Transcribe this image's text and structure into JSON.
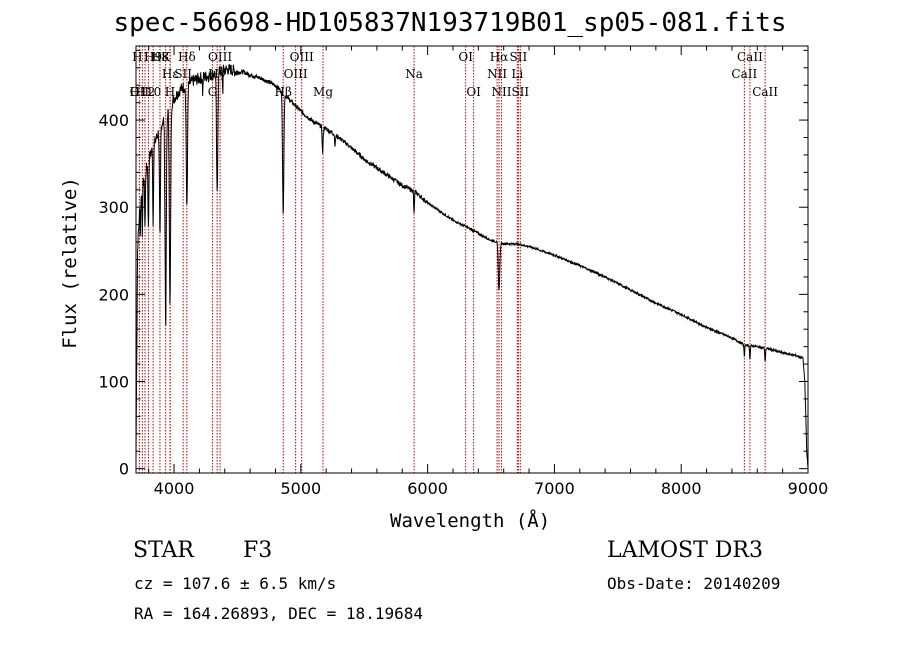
{
  "chart_data": {
    "type": "line",
    "title": "spec-56698-HD105837N193719B01_sp05-081.fits",
    "xlabel": "Wavelength (Å)",
    "ylabel": "Flux (relative)",
    "xlim": [
      3700,
      9000
    ],
    "ylim": [
      -5,
      485
    ],
    "xticks": [
      4000,
      5000,
      6000,
      7000,
      8000,
      9000
    ],
    "yticks": [
      0,
      100,
      200,
      300,
      400
    ],
    "xtick_labels": [
      "4000",
      "5000",
      "6000",
      "7000",
      "8000",
      "9000"
    ],
    "ytick_labels": [
      "0",
      "100",
      "200",
      "300",
      "400"
    ],
    "continuum": {
      "x": [
        3700,
        3712,
        3730,
        3760,
        3800,
        3850,
        3900,
        3950,
        4000,
        4050,
        4100,
        4150,
        4200,
        4250,
        4300,
        4350,
        4400,
        4450,
        4500,
        4550,
        4600,
        4700,
        4800,
        4900,
        5000,
        5100,
        5200,
        5300,
        5400,
        5500,
        5600,
        5700,
        5800,
        5900,
        6000,
        6100,
        6200,
        6300,
        6400,
        6500,
        6600,
        6700,
        6800,
        6900,
        7000,
        7200,
        7400,
        7600,
        7800,
        8000,
        8200,
        8400,
        8500,
        8600,
        8700,
        8800,
        8900,
        8960,
        8975,
        8990,
        9000
      ],
      "y": [
        10,
        250,
        300,
        330,
        355,
        375,
        395,
        410,
        425,
        435,
        440,
        445,
        448,
        450,
        452,
        455,
        458,
        458,
        455,
        455,
        452,
        447,
        440,
        425,
        410,
        398,
        390,
        380,
        368,
        355,
        345,
        335,
        325,
        318,
        305,
        295,
        285,
        278,
        270,
        262,
        258,
        258,
        255,
        250,
        245,
        233,
        220,
        205,
        190,
        177,
        162,
        150,
        142,
        140,
        137,
        133,
        130,
        127,
        100,
        20,
        0
      ]
    },
    "absorption_lines": [
      {
        "x": 3734,
        "depth": 40,
        "width": 2
      },
      {
        "x": 3750,
        "depth": 50,
        "width": 2
      },
      {
        "x": 3771,
        "depth": 60,
        "width": 3
      },
      {
        "x": 3798,
        "depth": 80,
        "width": 3
      },
      {
        "x": 3835,
        "depth": 90,
        "width": 3
      },
      {
        "x": 3889,
        "depth": 130,
        "width": 4
      },
      {
        "x": 3934,
        "depth": 240,
        "width": 5
      },
      {
        "x": 3968,
        "depth": 230,
        "width": 5
      },
      {
        "x": 4101,
        "depth": 140,
        "width": 5
      },
      {
        "x": 4226,
        "depth": 20,
        "width": 2
      },
      {
        "x": 4340,
        "depth": 140,
        "width": 5
      },
      {
        "x": 4384,
        "depth": 25,
        "width": 2
      },
      {
        "x": 4861,
        "depth": 140,
        "width": 5
      },
      {
        "x": 5172,
        "depth": 30,
        "width": 4
      },
      {
        "x": 5270,
        "depth": 12,
        "width": 3
      },
      {
        "x": 5893,
        "depth": 28,
        "width": 3
      },
      {
        "x": 6563,
        "depth": 55,
        "width": 6
      },
      {
        "x": 8498,
        "depth": 14,
        "width": 3
      },
      {
        "x": 8542,
        "depth": 16,
        "width": 3
      },
      {
        "x": 8662,
        "depth": 16,
        "width": 3
      }
    ],
    "line_markers": [
      {
        "x": 3727,
        "label": "OII",
        "row": 2
      },
      {
        "x": 3750,
        "label": "H12",
        "row": 2
      },
      {
        "x": 3771,
        "label": "H11",
        "row": 0
      },
      {
        "x": 3798,
        "label": "H10",
        "row": 2
      },
      {
        "x": 3835,
        "label": "H9",
        "row": 0
      },
      {
        "x": 3889,
        "label": "H8",
        "row": 0
      },
      {
        "x": 3934,
        "label": "K",
        "row": 0
      },
      {
        "x": 3968,
        "label": "H",
        "row": 2
      },
      {
        "x": 3970,
        "label": "Hε",
        "row": 1
      },
      {
        "x": 4072,
        "label": "SII",
        "row": 1
      },
      {
        "x": 4101,
        "label": "Hδ",
        "row": 0
      },
      {
        "x": 4304,
        "label": "G",
        "row": 2
      },
      {
        "x": 4340,
        "label": "Hγ",
        "row": 1
      },
      {
        "x": 4363,
        "label": "OIII",
        "row": 0
      },
      {
        "x": 4861,
        "label": "Hβ",
        "row": 2
      },
      {
        "x": 4959,
        "label": "OIII",
        "row": 1
      },
      {
        "x": 5007,
        "label": "OIII",
        "row": 0
      },
      {
        "x": 5175,
        "label": "Mg",
        "row": 2
      },
      {
        "x": 5893,
        "label": "Na",
        "row": 1
      },
      {
        "x": 6300,
        "label": "OI",
        "row": 0
      },
      {
        "x": 6363,
        "label": "OI",
        "row": 2
      },
      {
        "x": 6548,
        "label": "NII",
        "row": 1
      },
      {
        "x": 6563,
        "label": "Hα",
        "row": 0
      },
      {
        "x": 6583,
        "label": "NII",
        "row": 2
      },
      {
        "x": 6707,
        "label": "Li",
        "row": 1
      },
      {
        "x": 6716,
        "label": "SII",
        "row": 0
      },
      {
        "x": 6731,
        "label": "SII",
        "row": 2
      },
      {
        "x": 8498,
        "label": "CaII",
        "row": 1
      },
      {
        "x": 8542,
        "label": "CaII",
        "row": 0
      },
      {
        "x": 8662,
        "label": "CaII",
        "row": 2
      }
    ],
    "colors": {
      "spectrum": "#000000",
      "marker": "#c00000"
    }
  },
  "info": {
    "class": "STAR",
    "subclass": "F3",
    "survey": "LAMOST DR3",
    "cz": "cz = 107.6 ± 6.5 km/s",
    "obs_date": "Obs-Date: 20140209",
    "coords": "RA = 164.26893, DEC =  18.19684"
  }
}
